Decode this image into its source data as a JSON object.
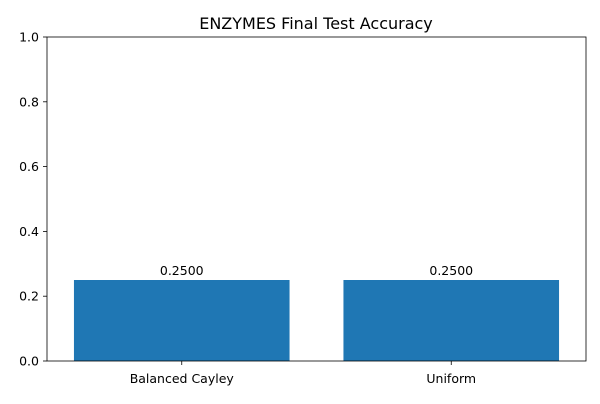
{
  "chart_data": {
    "type": "bar",
    "title": "ENZYMES Final Test Accuracy",
    "xlabel": "",
    "ylabel": "",
    "categories": [
      "Balanced Cayley",
      "Uniform"
    ],
    "values": [
      0.25,
      0.25
    ],
    "data_labels": [
      "0.2500",
      "0.2500"
    ],
    "ylim": [
      0,
      1.0
    ],
    "yticks": [
      0.0,
      0.2,
      0.4,
      0.6,
      0.8,
      1.0
    ],
    "ytick_labels": [
      "0.0",
      "0.2",
      "0.4",
      "0.6",
      "0.8",
      "1.0"
    ],
    "grid": false,
    "bar_color": "#1f77b4"
  }
}
